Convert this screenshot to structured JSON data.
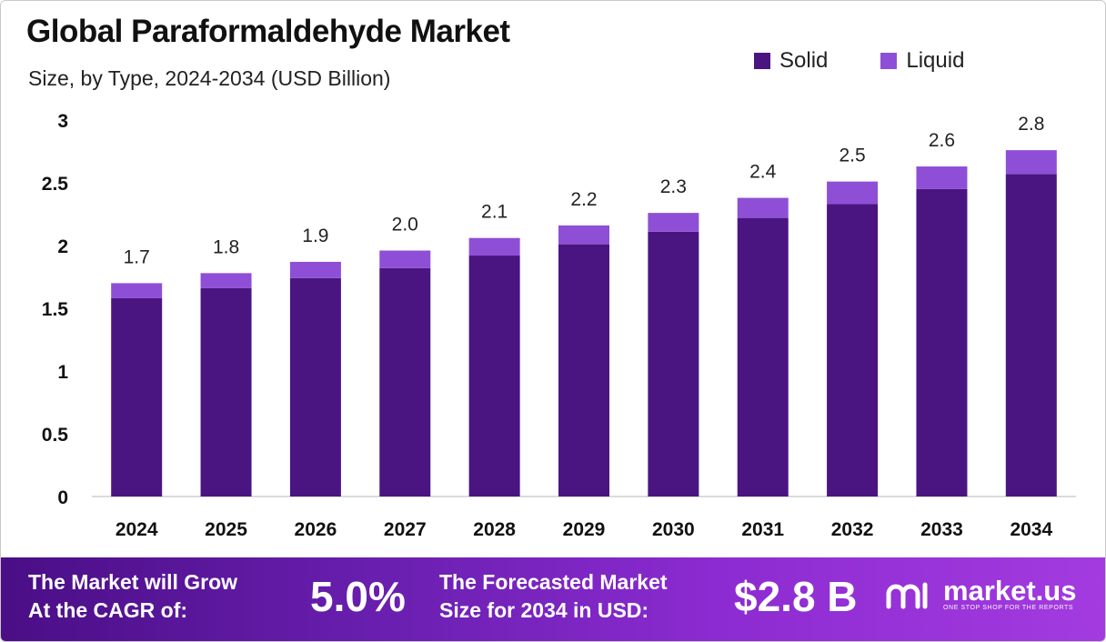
{
  "chart_data": {
    "type": "bar",
    "stacked": true,
    "title": "Global Paraformaldehyde Market",
    "subtitle": "Size, by Type, 2024-2034 (USD Billion)",
    "categories": [
      "2024",
      "2025",
      "2026",
      "2027",
      "2028",
      "2029",
      "2030",
      "2031",
      "2032",
      "2033",
      "2034"
    ],
    "series": [
      {
        "name": "Solid",
        "color": "#4b1581",
        "values": [
          1.58,
          1.66,
          1.74,
          1.82,
          1.92,
          2.01,
          2.11,
          2.22,
          2.33,
          2.45,
          2.57
        ]
      },
      {
        "name": "Liquid",
        "color": "#8e4fd6",
        "values": [
          0.12,
          0.12,
          0.13,
          0.14,
          0.14,
          0.15,
          0.15,
          0.16,
          0.18,
          0.18,
          0.19
        ]
      }
    ],
    "totals_labels": [
      "1.7",
      "1.8",
      "1.9",
      "2.0",
      "2.1",
      "2.2",
      "2.3",
      "2.4",
      "2.5",
      "2.6",
      "2.8"
    ],
    "ylim": [
      0,
      3
    ],
    "yticks": [
      "0",
      "0.5",
      "1",
      "1.5",
      "2",
      "2.5",
      "3"
    ],
    "ytick_values": [
      0,
      0.5,
      1,
      1.5,
      2,
      2.5,
      3
    ],
    "xlabel": "",
    "ylabel": "",
    "legend_position": "top-right",
    "grid": false
  },
  "footer": {
    "cagr_label_line1": "The Market will Grow",
    "cagr_label_line2": "At the CAGR of:",
    "cagr_value": "5.0%",
    "size_label_line1": "The Forecasted Market",
    "size_label_line2": "Size for 2034 in USD:",
    "size_value": "$2.8 B",
    "brand_name": "market.us",
    "brand_tagline": "ONE STOP SHOP FOR THE REPORTS",
    "brand_icon": "market-us-logo-icon"
  }
}
